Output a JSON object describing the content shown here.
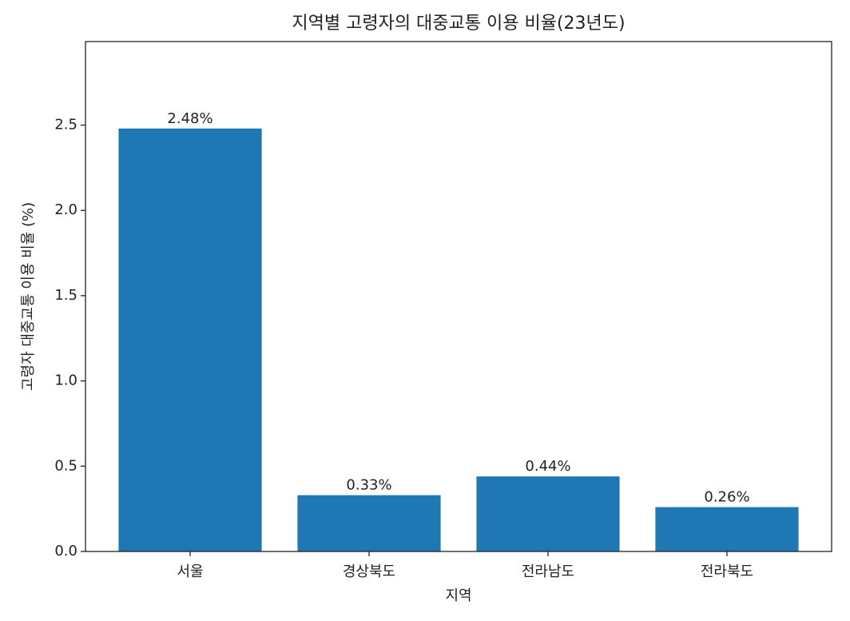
{
  "chart_data": {
    "type": "bar",
    "title": "지역별 고령자의 대중교통 이용 비율(23년도)",
    "x_label": "지역",
    "y_label": "고령자 대중교통 이용 비율 (%)",
    "categories": [
      "서울",
      "경상북도",
      "전라남도",
      "전라북도"
    ],
    "values": [
      2.48,
      0.33,
      0.44,
      0.26
    ],
    "value_labels": [
      "2.48%",
      "0.33%",
      "0.44%",
      "0.26%"
    ],
    "color": "#1f77b4",
    "ylim": [
      0,
      2.99
    ],
    "yticks": [
      {
        "value": 0,
        "label": "0.0"
      },
      0.5,
      {
        "value": 1,
        "label": "1.0"
      },
      1.5,
      {
        "value": 2,
        "label": "2.0"
      },
      2.5
    ],
    "grid": false
  }
}
